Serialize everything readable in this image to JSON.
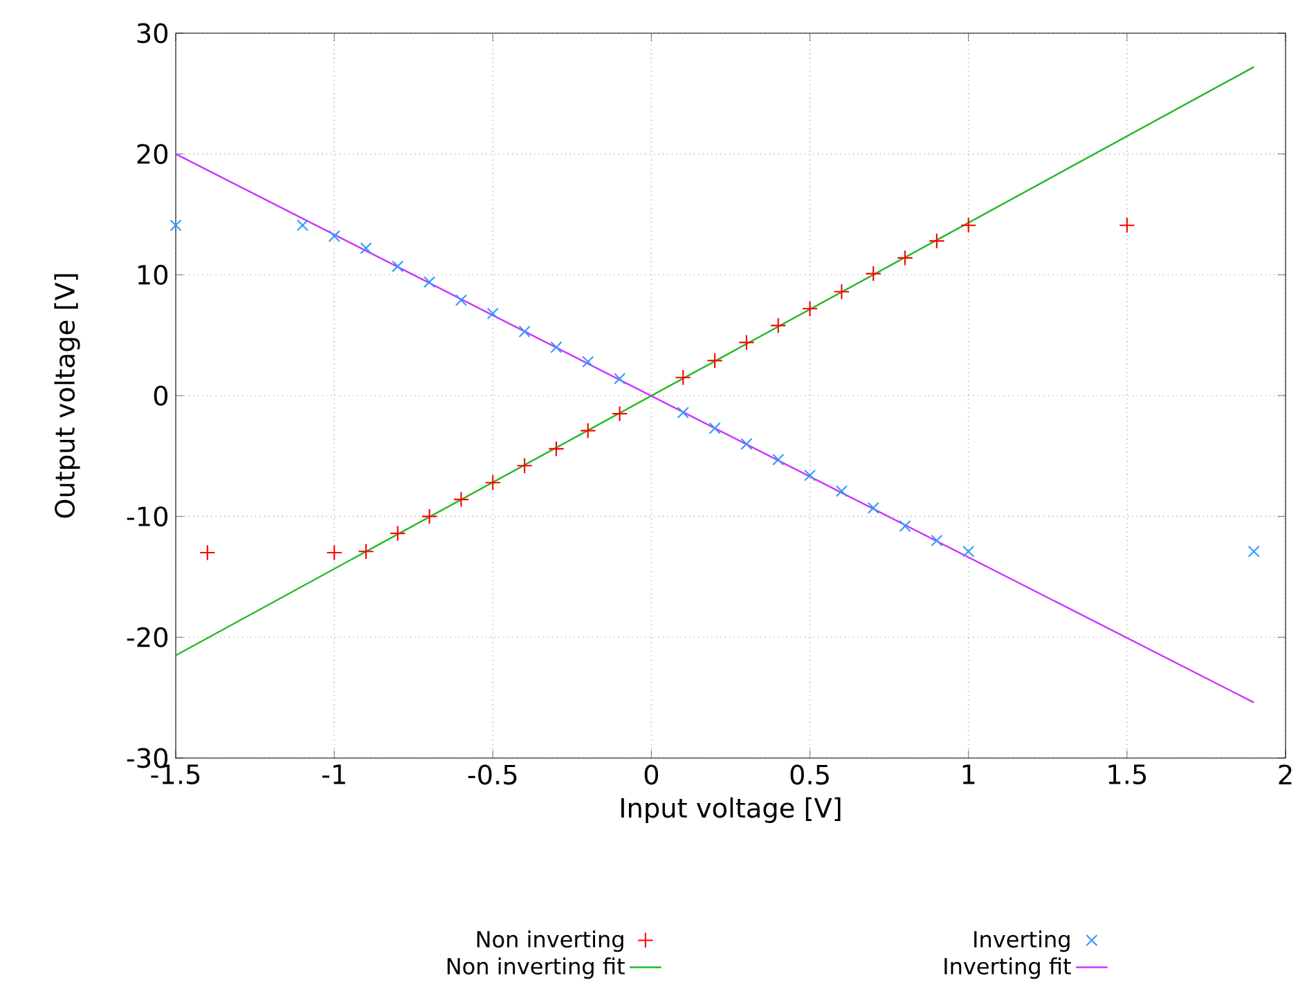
{
  "chart_data": {
    "type": "scatter",
    "xlabel": "Input voltage [V]",
    "ylabel": "Output voltage [V]",
    "xlim": [
      -1.5,
      2
    ],
    "ylim": [
      -30,
      30
    ],
    "xticks": [
      -1.5,
      -1,
      -0.5,
      0,
      0.5,
      1,
      1.5,
      2
    ],
    "yticks": [
      -30,
      -20,
      -10,
      0,
      10,
      20,
      30
    ],
    "grid": true,
    "legend": "bottom",
    "series": [
      {
        "name": "Non inverting",
        "marker": "plus",
        "color": "#ff0000",
        "x": [
          -1.4,
          -1,
          -0.9,
          -0.8,
          -0.7,
          -0.6,
          -0.5,
          -0.4,
          -0.3,
          -0.2,
          -0.1,
          0.1,
          0.2,
          0.3,
          0.4,
          0.5,
          0.6,
          0.7,
          0.8,
          0.9,
          1,
          1.5
        ],
        "values": [
          -13,
          -13,
          -12.9,
          -11.4,
          -10,
          -8.6,
          -7.2,
          -5.8,
          -4.4,
          -2.9,
          -1.5,
          1.5,
          2.9,
          4.4,
          5.8,
          7.2,
          8.6,
          10.1,
          11.4,
          12.8,
          14.1,
          14.1
        ]
      },
      {
        "name": "Inverting",
        "marker": "cross",
        "color": "#3399ff",
        "x": [
          -1.5,
          -1.1,
          -1,
          -0.9,
          -0.8,
          -0.7,
          -0.6,
          -0.5,
          -0.4,
          -0.3,
          -0.2,
          -0.1,
          0.1,
          0.2,
          0.3,
          0.4,
          0.5,
          0.6,
          0.7,
          0.8,
          0.9,
          1,
          1.9
        ],
        "values": [
          14.1,
          14.1,
          13.2,
          12.2,
          10.7,
          9.4,
          7.9,
          6.8,
          5.3,
          4,
          2.8,
          1.4,
          -1.4,
          -2.7,
          -4,
          -5.3,
          -6.6,
          -7.9,
          -9.3,
          -10.8,
          -12,
          -12.9,
          -12.9
        ]
      },
      {
        "name": "Non inverting fit",
        "type": "line",
        "marker": "none",
        "color": "#22b822",
        "x": [
          -1.5,
          1.9
        ],
        "values": [
          -21.5,
          27.2
        ]
      },
      {
        "name": "Inverting fit",
        "type": "line",
        "marker": "none",
        "color": "#cc33ff",
        "x": [
          -1.5,
          1.9
        ],
        "values": [
          20,
          -25.4
        ]
      }
    ]
  }
}
